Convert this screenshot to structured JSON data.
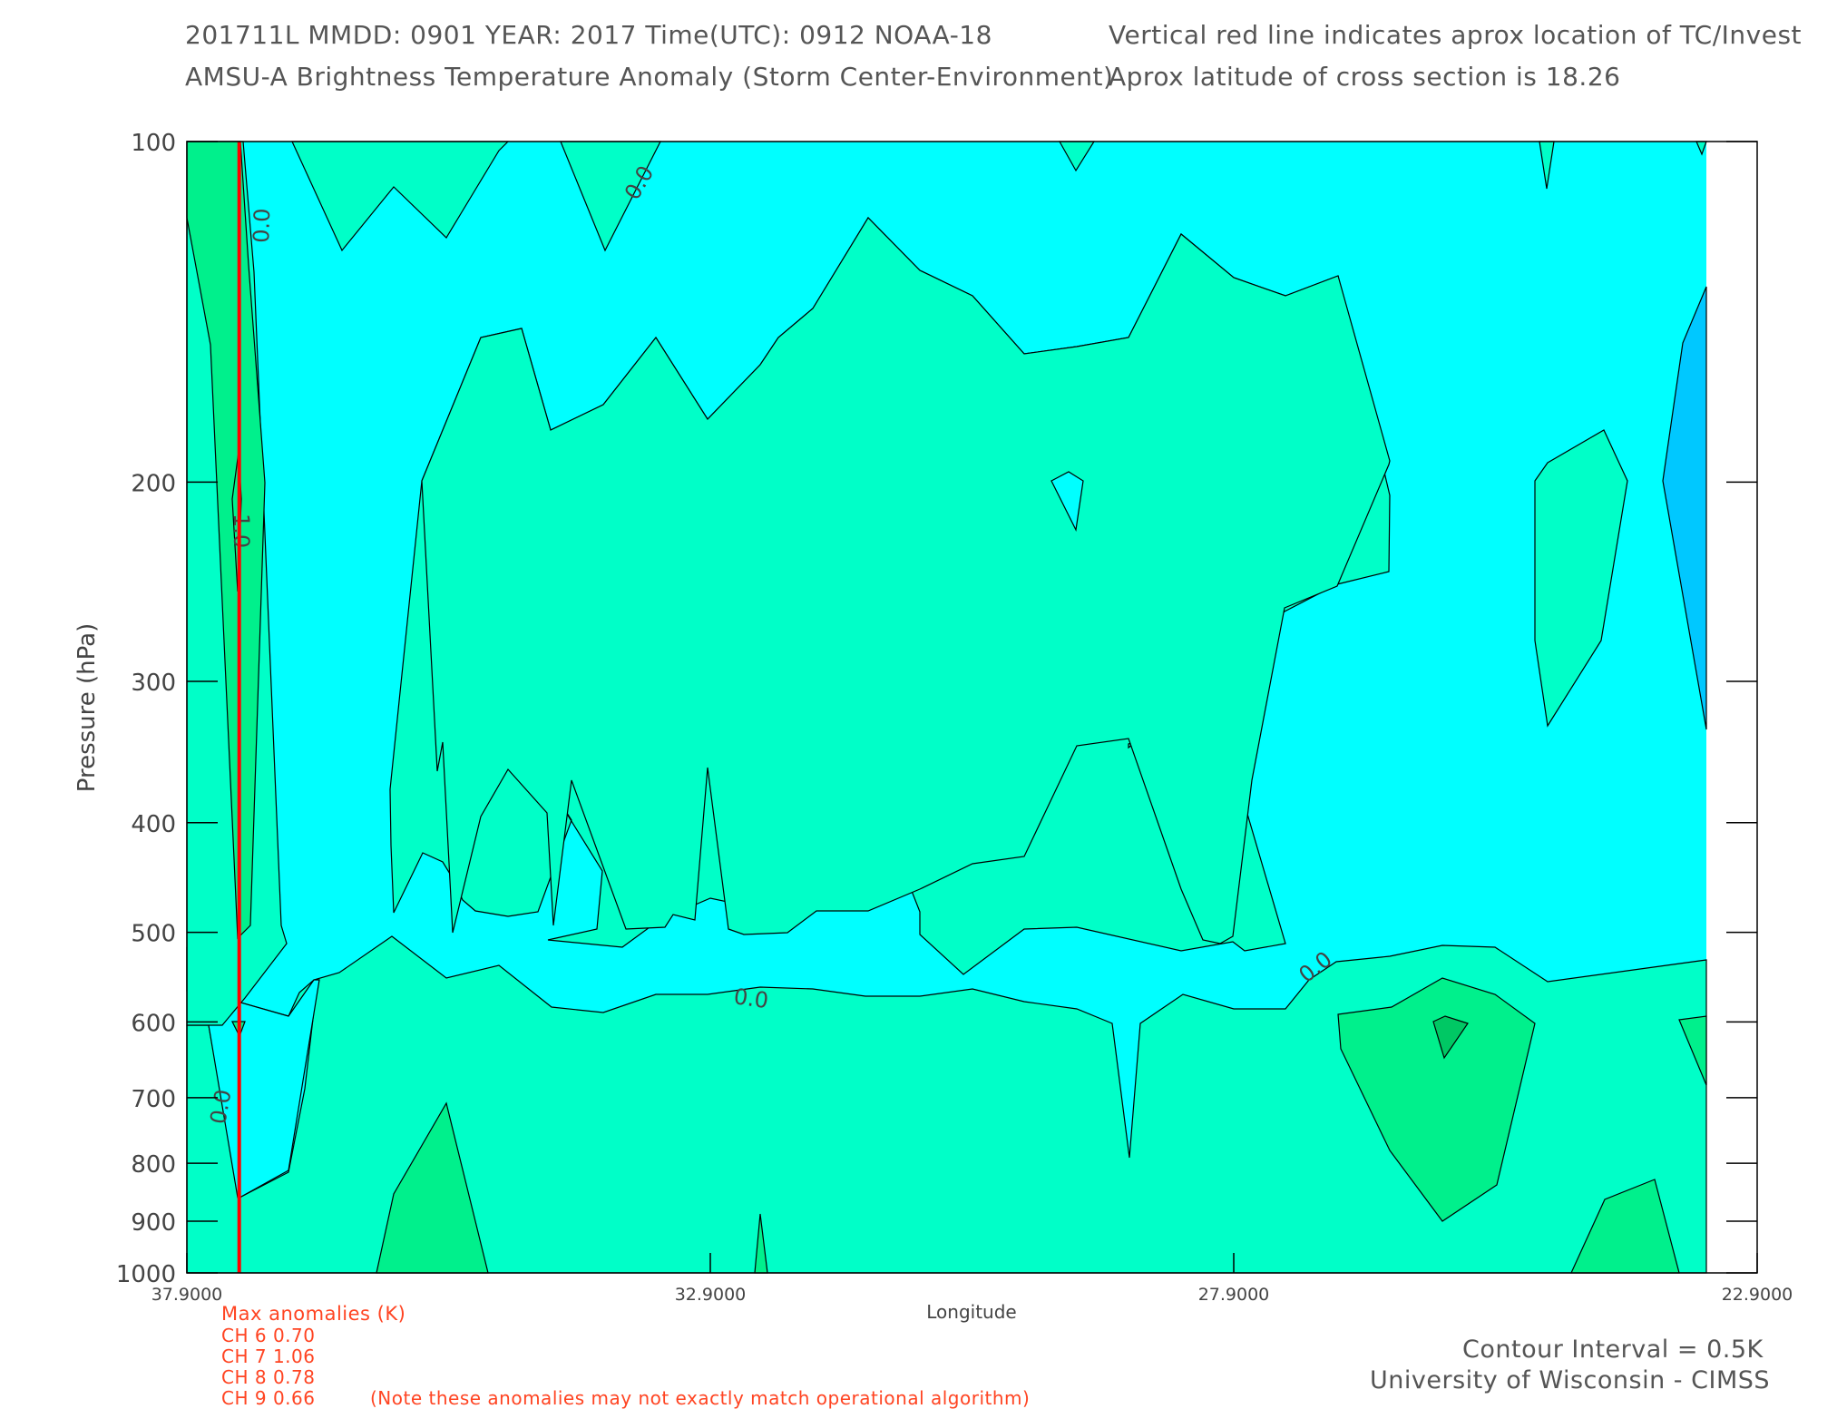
{
  "header": {
    "line1_left": "201711L  MMDD: 0901 YEAR: 2017 Time(UTC): 0912 NOAA-18",
    "line2_left": "AMSU-A Brightness Temperature Anomaly (Storm Center-Environment)",
    "line1_right": "Vertical red line indicates aprox location of TC/Invest",
    "line2_right": "Aprox latitude of cross section is 18.26"
  },
  "chart_data": {
    "type": "contour",
    "title": "AMSU-A Brightness Temperature Anomaly (Storm Center-Environment)",
    "xlabel": "Longitude",
    "ylabel": "Pressure (hPa)",
    "xlim": [
      37.9,
      22.9
    ],
    "ylim": [
      100,
      1000
    ],
    "y_scale": "log",
    "x_ticks": [
      "37.9000",
      "32.9000",
      "27.9000",
      "22.9000"
    ],
    "y_ticks": [
      "100",
      "200",
      "300",
      "400",
      "500",
      "600",
      "700",
      "800",
      "900",
      "1000"
    ],
    "tc_longitude": 37.4,
    "contour_labels": [
      "0.0",
      "0.0",
      "0.0",
      "0.0",
      "1.0",
      "0.0"
    ],
    "contour_interval": "0.5K",
    "levels": [
      {
        "range": "< -0.5",
        "color": "#00c8ff"
      },
      {
        "range": "-0.5 to 0.0",
        "color": "#00ffff"
      },
      {
        "range": "0.0 to 0.5",
        "color": "#00ffc8"
      },
      {
        "range": "0.5 to 1.0",
        "color": "#00f08c"
      }
    ]
  },
  "anomalies": {
    "title": "Max anomalies (K)",
    "rows": [
      "CH 6  0.70",
      "CH 7  1.06",
      "CH 8  0.78",
      "CH 9  0.66"
    ],
    "note": "(Note these anomalies may not exactly match operational algorithm)"
  },
  "footer": {
    "interval": "Contour Interval = 0.5K",
    "credit": "University of Wisconsin - CIMSS"
  },
  "colors": {
    "cold": "#00c8ff",
    "cyan": "#00ffff",
    "teal": "#00ffc8",
    "green": "#00f08c",
    "tc_line": "#ff0000",
    "annotation": "#ff4422"
  }
}
